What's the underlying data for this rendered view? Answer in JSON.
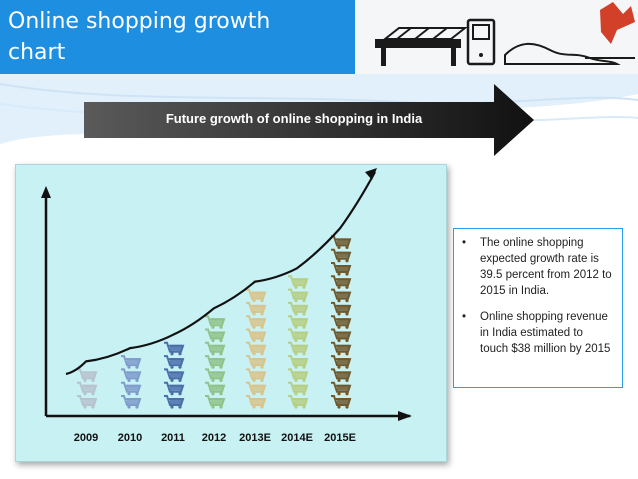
{
  "title": "Online shopping growth chart",
  "arrow_label": "Future growth of online shopping in India",
  "notes": [
    "The online shopping expected growth rate is 39.5 percent from 2012 to 2015 in India.",
    "Online shopping revenue in India estimated to touch $38 million by 2015"
  ],
  "colors": {
    "header": "#1d8ee0",
    "panel": "#c8f1f3",
    "note_border": "#2a9ee8"
  },
  "icons": {
    "bullet": "bullet-icon",
    "cart": "shopping-cart-icon"
  },
  "chart_data": {
    "type": "bar",
    "categories": [
      "2009",
      "2010",
      "2011",
      "2012",
      "2013E",
      "2014E",
      "2015E"
    ],
    "values": [
      3,
      4,
      5,
      7,
      9,
      10,
      13
    ],
    "series_colors": [
      "#b7c3cf",
      "#7f9ccb",
      "#4a6fa9",
      "#8fc38a",
      "#d8c48c",
      "#b6cf84",
      "#6e5a2f"
    ],
    "trend": "increasing",
    "title": "",
    "xlabel": "",
    "ylabel": "",
    "grid": false
  }
}
